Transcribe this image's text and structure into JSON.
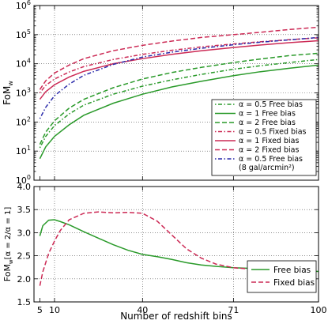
{
  "chart_data": [
    {
      "type": "line",
      "ylabel": "FoM",
      "ylabel_sub": "w",
      "yscale": "log",
      "ylim": [
        1,
        1000000
      ],
      "xlim": [
        3,
        100
      ],
      "grid": true,
      "legend_placement": "lower-right",
      "xticks": [
        5,
        10,
        40,
        71,
        100
      ],
      "yticks": [
        {
          "value": 1,
          "base": "10",
          "exp": "0"
        },
        {
          "value": 10,
          "base": "10",
          "exp": "1"
        },
        {
          "value": 100,
          "base": "10",
          "exp": "2"
        },
        {
          "value": 1000,
          "base": "10",
          "exp": "3"
        },
        {
          "value": 10000,
          "base": "10",
          "exp": "4"
        },
        {
          "value": 100000,
          "base": "10",
          "exp": "5"
        },
        {
          "value": 1000000,
          "base": "10",
          "exp": "6"
        }
      ],
      "x": [
        5,
        7,
        10,
        15,
        20,
        30,
        40,
        50,
        60,
        71,
        80,
        90,
        100
      ],
      "series": [
        {
          "name": "α = 0.5 Free bias",
          "color": "#2a9a2a",
          "dash": "1.5 2.5 5 2.5",
          "values": [
            13,
            32,
            75,
            190,
            380,
            900,
            1700,
            2800,
            4300,
            6500,
            8500,
            11000,
            14000
          ]
        },
        {
          "name": "α = 1 Free bias",
          "color": "#2a9a2a",
          "dash": "",
          "values": [
            5.5,
            14,
            32,
            80,
            170,
            440,
            900,
            1600,
            2500,
            3900,
            5300,
            7000,
            9000
          ]
        },
        {
          "name": "α = 2 Free bias",
          "color": "#2a9a2a",
          "dash": "6 3",
          "values": [
            17,
            45,
            110,
            300,
            600,
            1500,
            3000,
            5000,
            7500,
            11000,
            14500,
            19000,
            23000
          ]
        },
        {
          "name": "α = 0.5 Fixed bias",
          "color": "#cc2a55",
          "dash": "1.5 2.5 5 2.5",
          "values": [
            1000,
            1800,
            3000,
            5200,
            8000,
            14000,
            21000,
            29000,
            38000,
            48000,
            57000,
            67000,
            78000
          ]
        },
        {
          "name": "α = 1 Fixed bias",
          "color": "#cc2a55",
          "dash": "",
          "values": [
            600,
            1100,
            1900,
            3500,
            5500,
            10000,
            15000,
            21000,
            28000,
            36000,
            44000,
            53000,
            62000
          ]
        },
        {
          "name": "α = 2 Fixed bias",
          "color": "#cc2a55",
          "dash": "6 3",
          "values": [
            1300,
            2600,
            4800,
            9000,
            15000,
            28000,
            43000,
            60000,
            80000,
            100000,
            120000,
            150000,
            180000
          ]
        },
        {
          "name": "α = 0.5 Free bias",
          "name_line2": "(8 gal/arcmin²)",
          "color": "#2a2aaa",
          "dash": "1.5 2.5 5 2.5",
          "values": [
            130,
            320,
            800,
            2000,
            4000,
            9500,
            17000,
            25000,
            34000,
            45000,
            55000,
            66000,
            80000
          ]
        }
      ]
    },
    {
      "type": "line",
      "ylabel": "FoM",
      "ylabel_sub": "w",
      "ylabel_suffix": "[α = 2/α = 1]",
      "ylim": [
        1.5,
        4.0
      ],
      "xlim": [
        3,
        100
      ],
      "xlabel": "Number of redshift bins",
      "xticks": [
        5,
        10,
        40,
        71,
        100
      ],
      "yticks": [
        1.5,
        2.0,
        2.5,
        3.0,
        3.5,
        4.0
      ],
      "grid": true,
      "legend_placement": "lower-right",
      "x": [
        5,
        6,
        8,
        10,
        12,
        15,
        20,
        25,
        30,
        35,
        40,
        45,
        50,
        55,
        60,
        65,
        71,
        80,
        90,
        100
      ],
      "series": [
        {
          "name": "Free bias",
          "color": "#2a9a2a",
          "dash": "",
          "values": [
            2.93,
            3.15,
            3.27,
            3.28,
            3.24,
            3.17,
            3.02,
            2.88,
            2.74,
            2.62,
            2.53,
            2.48,
            2.42,
            2.35,
            2.3,
            2.27,
            2.24,
            2.22,
            2.2,
            2.16
          ]
        },
        {
          "name": "Fixed bias",
          "color": "#cc2a55",
          "dash": "6 3",
          "values": [
            1.85,
            2.15,
            2.55,
            2.82,
            3.05,
            3.28,
            3.42,
            3.45,
            3.43,
            3.44,
            3.42,
            3.25,
            2.95,
            2.65,
            2.45,
            2.32,
            2.24,
            2.2,
            2.16,
            2.14
          ]
        }
      ]
    }
  ]
}
